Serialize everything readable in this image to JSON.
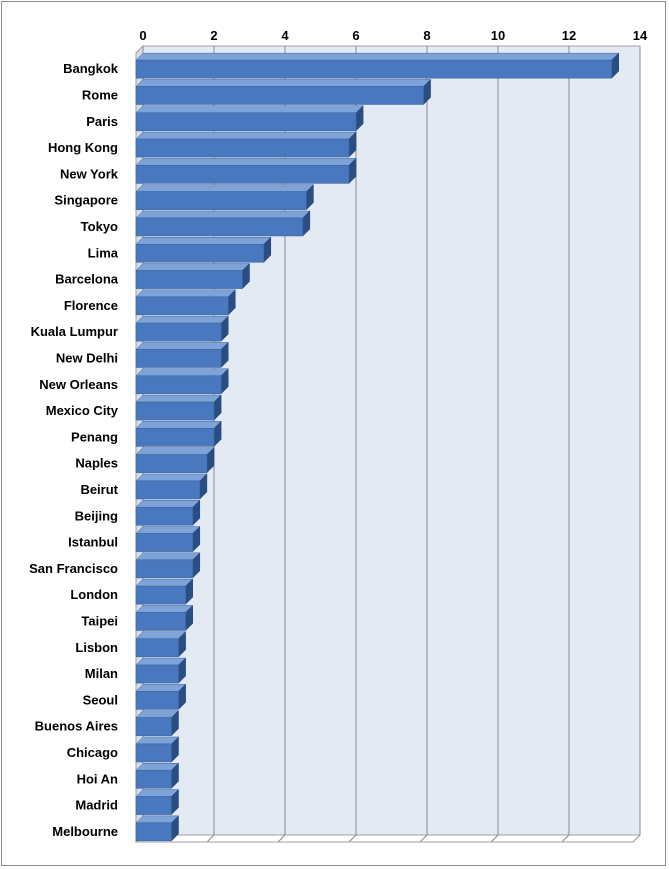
{
  "chart_data": {
    "type": "bar",
    "orientation": "horizontal",
    "style": "3d-clustered-bar",
    "title": "",
    "xlabel": "",
    "ylabel": "",
    "xlim": [
      0,
      14
    ],
    "x_ticks": [
      0,
      2,
      4,
      6,
      8,
      10,
      12,
      14
    ],
    "x_axis_position": "top",
    "grid": true,
    "legend": "none",
    "categories": [
      "Bangkok",
      "Rome",
      "Paris",
      "Hong Kong",
      "New York",
      "Singapore",
      "Tokyo",
      "Lima",
      "Barcelona",
      "Florence",
      "Kuala Lumpur",
      "New Delhi",
      "New Orleans",
      "Mexico City",
      "Penang",
      "Naples",
      "Beirut",
      "Beijing",
      "Istanbul",
      "San Francisco",
      "London",
      "Taipei",
      "Lisbon",
      "Milan",
      "Seoul",
      "Buenos Aires",
      "Chicago",
      "Hoi An",
      "Madrid",
      "Melbourne"
    ],
    "values": [
      13.4,
      8.1,
      6.2,
      6.0,
      6.0,
      4.8,
      4.7,
      3.6,
      3.0,
      2.6,
      2.4,
      2.4,
      2.4,
      2.2,
      2.2,
      2.0,
      1.8,
      1.6,
      1.6,
      1.6,
      1.4,
      1.4,
      1.2,
      1.2,
      1.2,
      1.0,
      1.0,
      1.0,
      1.0,
      1.0
    ],
    "colors": {
      "bar_front": "#4a78be",
      "bar_top": "#7ea3d9",
      "bar_side": "#2b4e82",
      "wall": "#e4eaf4",
      "grid": "#8a8a8a"
    }
  }
}
